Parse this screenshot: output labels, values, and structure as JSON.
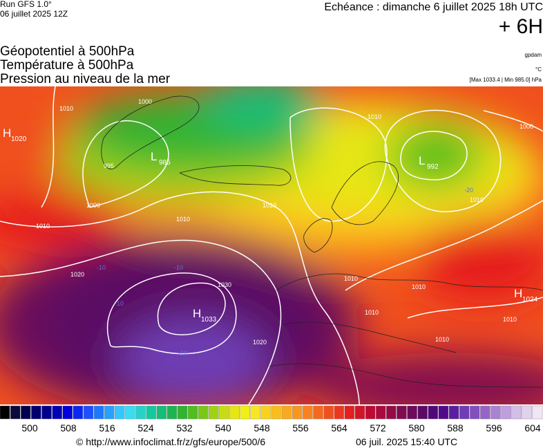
{
  "header": {
    "run": "Run GFS 1.0°",
    "date": "06 juillet 2025 12Z",
    "forecast": "Echéance : dimanche 6 juillet 2025 18h UTC",
    "offset": "+ 6H"
  },
  "legend": {
    "fields": [
      "Géopotentiel à 500hPa",
      "Température à 500hPa",
      "Pression au niveau de la mer"
    ],
    "units": [
      "gpdam",
      "°C"
    ],
    "range": "[Max 1033.4 | Min 985.0] hPa"
  },
  "map": {
    "centers": [
      {
        "letter": "H",
        "value": 1020
      },
      {
        "letter": "L",
        "value": 985
      },
      {
        "letter": "L",
        "value": 992
      },
      {
        "letter": "H",
        "value": 1033
      },
      {
        "letter": "H",
        "value": 1024
      }
    ],
    "isobar_labels": [
      1020,
      1030,
      1020,
      1010,
      1010,
      1000,
      1010,
      995,
      1010,
      1010,
      1010,
      1010,
      1010,
      1000,
      1010,
      1010,
      1000,
      1010
    ],
    "temp_labels": [
      -10,
      -10,
      -10,
      -20,
      -10
    ]
  },
  "colorbar": {
    "colors": [
      "#000000",
      "#0a0a3c",
      "#000050",
      "#00006e",
      "#00008c",
      "#0000b4",
      "#0000dc",
      "#0a28f0",
      "#1e50ff",
      "#1e78ff",
      "#28a0ff",
      "#32c8ff",
      "#3cdcf0",
      "#28d2c8",
      "#14c8a0",
      "#14be78",
      "#1eb450",
      "#32b432",
      "#50be1e",
      "#78c814",
      "#a0d214",
      "#c8dc14",
      "#e6e614",
      "#f0f014",
      "#fae61e",
      "#fad21e",
      "#fabe1e",
      "#faaa1e",
      "#fa961e",
      "#fa821e",
      "#f5691e",
      "#f0501e",
      "#eb371e",
      "#e61e1e",
      "#d21428",
      "#be0a32",
      "#aa0a3c",
      "#960a46",
      "#820a50",
      "#6e0a5a",
      "#5a0a64",
      "#500a78",
      "#500a8c",
      "#5a1ea0",
      "#6e3cb4",
      "#8250be",
      "#9664c8",
      "#aa82d2",
      "#be9ede",
      "#d2bee6",
      "#e1d2ee",
      "#f0e6f5"
    ],
    "ticks": [
      500,
      508,
      516,
      524,
      532,
      540,
      548,
      556,
      564,
      572,
      580,
      588,
      596,
      604
    ]
  },
  "footer": {
    "source": "© http://www.infoclimat.fr/z/gfs/europe/500/6",
    "generated": "06 juil. 2025 15:40 UTC"
  }
}
